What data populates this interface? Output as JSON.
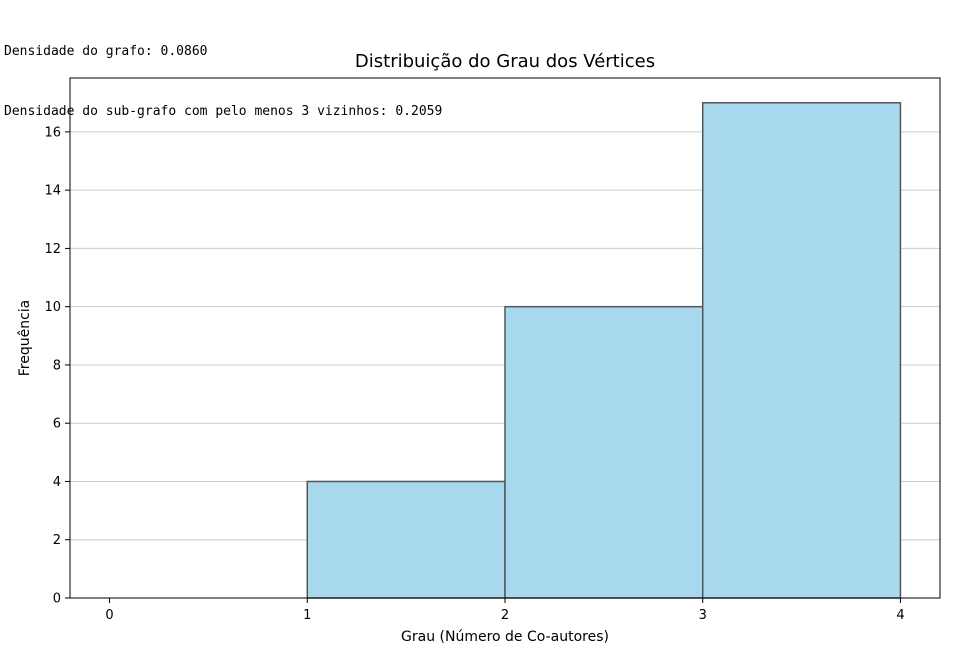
{
  "output": {
    "lines": [
      "Densidade do grafo: 0.0860",
      "Densidade do sub-grafo com pelo menos 3 vizinhos: 0.2059"
    ]
  },
  "chart_data": {
    "type": "bar",
    "title": "Distribuição do Grau dos Vértices",
    "xlabel": "Grau (Número de Co-autores)",
    "ylabel": "Frequência",
    "bins": [
      {
        "start": 0,
        "end": 1,
        "value": 0
      },
      {
        "start": 1,
        "end": 2,
        "value": 4
      },
      {
        "start": 2,
        "end": 3,
        "value": 10
      },
      {
        "start": 3,
        "end": 4,
        "value": 17
      }
    ],
    "xlim": [
      -0.2,
      4.2
    ],
    "ylim": [
      0,
      17.85
    ],
    "xticks": [
      0,
      1,
      2,
      3,
      4
    ],
    "yticks": [
      0,
      2,
      4,
      6,
      8,
      10,
      12,
      14,
      16
    ],
    "grid": "y",
    "bar_color": "#a8d8ee",
    "edge_color": "#555555"
  }
}
